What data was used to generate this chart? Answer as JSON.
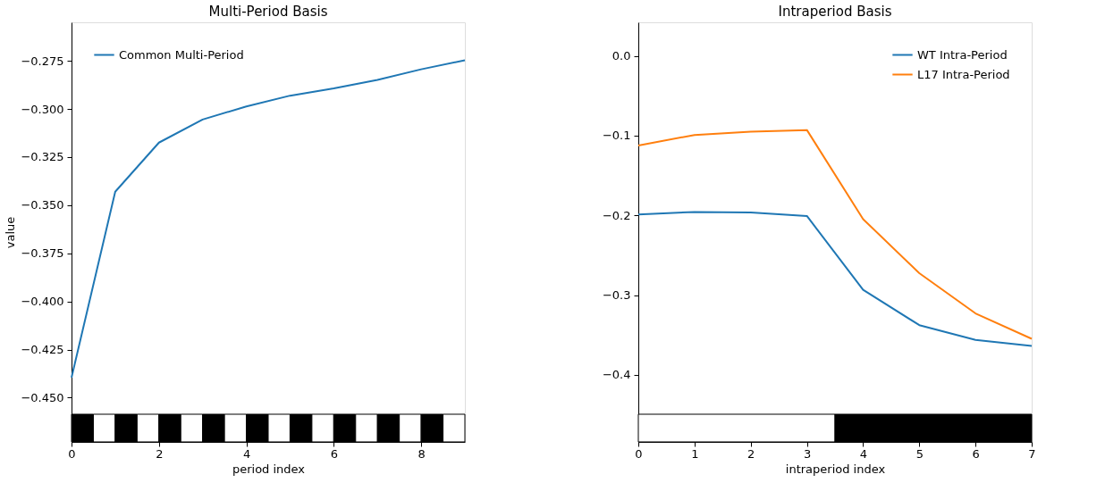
{
  "chart_data": [
    {
      "type": "line",
      "title": "Multi-Period Basis",
      "xlabel": "period index",
      "ylabel": "value",
      "x": [
        0,
        1,
        2,
        3,
        4,
        5,
        6,
        7,
        8,
        9
      ],
      "series": [
        {
          "name": "Common Multi-Period",
          "color": "#1f77b4",
          "values": [
            -0.4396,
            -0.343,
            -0.3175,
            -0.3055,
            -0.2987,
            -0.2931,
            -0.2893,
            -0.2849,
            -0.2794,
            -0.2747
          ]
        }
      ],
      "xlim": [
        0,
        9
      ],
      "xticks": [
        0,
        2,
        4,
        6,
        8
      ],
      "ylim": [
        -0.473,
        -0.255
      ],
      "yticks": [
        {
          "value": -0.45,
          "label": "−0.450"
        },
        {
          "value": -0.425,
          "label": "−0.425"
        },
        {
          "value": -0.4,
          "label": "−0.400"
        },
        {
          "value": -0.375,
          "label": "−0.375"
        },
        {
          "value": -0.35,
          "label": "−0.350"
        },
        {
          "value": -0.325,
          "label": "−0.325"
        },
        {
          "value": -0.3,
          "label": "−0.300"
        },
        {
          "value": -0.275,
          "label": "−0.275"
        }
      ],
      "bands": [
        {
          "axis": "x",
          "from": 0,
          "to": 0.5,
          "color": "#000000"
        },
        {
          "axis": "x",
          "from": 0.5,
          "to": 1,
          "color": "#ffffff"
        },
        {
          "axis": "x",
          "from": 1,
          "to": 1.5,
          "color": "#000000"
        },
        {
          "axis": "x",
          "from": 1.5,
          "to": 2,
          "color": "#ffffff"
        },
        {
          "axis": "x",
          "from": 2,
          "to": 2.5,
          "color": "#000000"
        },
        {
          "axis": "x",
          "from": 2.5,
          "to": 3,
          "color": "#ffffff"
        },
        {
          "axis": "x",
          "from": 3,
          "to": 3.5,
          "color": "#000000"
        },
        {
          "axis": "x",
          "from": 3.5,
          "to": 4,
          "color": "#ffffff"
        },
        {
          "axis": "x",
          "from": 4,
          "to": 4.5,
          "color": "#000000"
        },
        {
          "axis": "x",
          "from": 4.5,
          "to": 5,
          "color": "#ffffff"
        },
        {
          "axis": "x",
          "from": 5,
          "to": 5.5,
          "color": "#000000"
        },
        {
          "axis": "x",
          "from": 5.5,
          "to": 6,
          "color": "#ffffff"
        },
        {
          "axis": "x",
          "from": 6,
          "to": 6.5,
          "color": "#000000"
        },
        {
          "axis": "x",
          "from": 6.5,
          "to": 7,
          "color": "#ffffff"
        },
        {
          "axis": "x",
          "from": 7,
          "to": 7.5,
          "color": "#000000"
        },
        {
          "axis": "x",
          "from": 7.5,
          "to": 8,
          "color": "#ffffff"
        },
        {
          "axis": "x",
          "from": 8,
          "to": 8.5,
          "color": "#000000"
        },
        {
          "axis": "x",
          "from": 8.5,
          "to": 9,
          "color": "#ffffff"
        }
      ],
      "legend": "top left",
      "grid": false
    },
    {
      "type": "line",
      "title": "Intraperiod Basis",
      "xlabel": "intraperiod index",
      "x": [
        0,
        1,
        2,
        3,
        4,
        5,
        6,
        7
      ],
      "series": [
        {
          "name": "WT Intra-Period",
          "color": "#1f77b4",
          "values": [
            -0.1988,
            -0.1957,
            -0.1965,
            -0.2008,
            -0.2934,
            -0.3376,
            -0.3562,
            -0.3636
          ]
        },
        {
          "name": "L17 Intra-Period",
          "color": "#ff7f0e",
          "values": [
            -0.1124,
            -0.0992,
            -0.095,
            -0.093,
            -0.2047,
            -0.2725,
            -0.3229,
            -0.3547
          ]
        }
      ],
      "xlim": [
        0,
        7
      ],
      "xticks": [
        0,
        1,
        2,
        3,
        4,
        5,
        6,
        7
      ],
      "ylim": [
        -0.484,
        0.042
      ],
      "yticks": [
        {
          "value": -0.4,
          "label": "−0.4"
        },
        {
          "value": -0.3,
          "label": "−0.3"
        },
        {
          "value": -0.2,
          "label": "−0.2"
        },
        {
          "value": -0.1,
          "label": "−0.1"
        },
        {
          "value": 0,
          "label": "0.0"
        }
      ],
      "bands": [
        {
          "axis": "x",
          "from": 0,
          "to": 3.5,
          "color": "#ffffff"
        },
        {
          "axis": "x",
          "from": 3.5,
          "to": 7,
          "color": "#000000"
        }
      ],
      "legend": "top right",
      "grid": false
    }
  ]
}
